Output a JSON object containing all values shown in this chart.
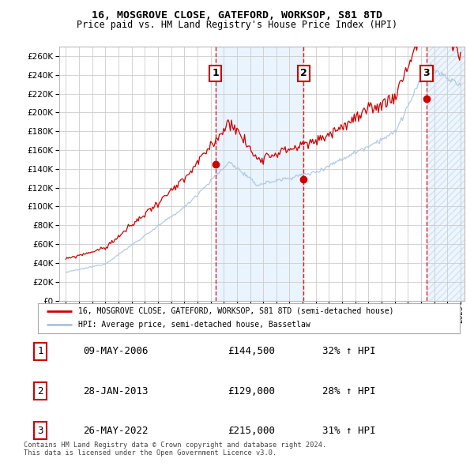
{
  "title1": "16, MOSGROVE CLOSE, GATEFORD, WORKSOP, S81 8TD",
  "title2": "Price paid vs. HM Land Registry's House Price Index (HPI)",
  "legend_house": "16, MOSGROVE CLOSE, GATEFORD, WORKSOP, S81 8TD (semi-detached house)",
  "legend_hpi": "HPI: Average price, semi-detached house, Bassetlaw",
  "footer": "Contains HM Land Registry data © Crown copyright and database right 2024.\nThis data is licensed under the Open Government Licence v3.0.",
  "sales": [
    {
      "label": "1",
      "date": "09-MAY-2006",
      "price": 144500,
      "pct": "32% ↑ HPI",
      "year": 2006.36
    },
    {
      "label": "2",
      "date": "28-JAN-2013",
      "price": 129000,
      "pct": "28% ↑ HPI",
      "year": 2013.08
    },
    {
      "label": "3",
      "date": "26-MAY-2022",
      "price": 215000,
      "pct": "31% ↑ HPI",
      "year": 2022.4
    }
  ],
  "hpi_color": "#aac4e0",
  "price_color": "#cc0000",
  "sale_vline_color": "#cc0000",
  "background_color": "#ffffff",
  "grid_color": "#cccccc",
  "xmin": 1995,
  "xmax": 2025,
  "ymin": 0,
  "ymax": 270000,
  "ytick_step": 20000,
  "shade_color": "#ddeeff",
  "hatch_color": "#c8d8e8"
}
